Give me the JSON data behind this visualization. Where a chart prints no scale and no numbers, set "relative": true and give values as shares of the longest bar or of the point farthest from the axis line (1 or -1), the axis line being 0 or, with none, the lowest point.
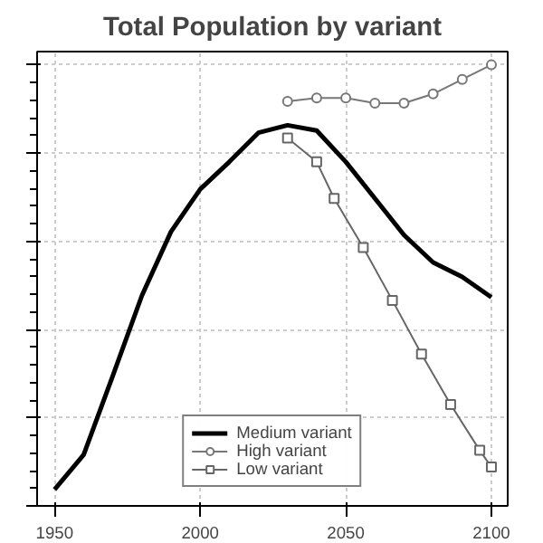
{
  "chart_data": {
    "type": "line",
    "title": "Total Population by variant",
    "relative": true,
    "xlim": [
      1944,
      2105.6
    ],
    "xticks": [
      1950,
      2000,
      2050,
      2100
    ],
    "grid": true,
    "legend": "bottom",
    "series": [
      {
        "name": "Medium variant",
        "color": "#000000",
        "marker": "none",
        "x": [
          1950,
          1960,
          1970,
          1980,
          1990,
          2000,
          2010,
          2020,
          2030,
          2040,
          2050,
          2060,
          2070,
          2080,
          2090,
          2100
        ],
        "values": [
          0.037,
          0.116,
          0.295,
          0.477,
          0.622,
          0.718,
          0.78,
          0.846,
          0.863,
          0.851,
          0.78,
          0.697,
          0.614,
          0.552,
          0.519,
          0.473
        ]
      },
      {
        "name": "High variant",
        "color": "#777777",
        "marker": "circle",
        "x": [
          2030,
          2040,
          2050,
          2060,
          2070,
          2080,
          2090,
          2100
        ],
        "values": [
          0.917,
          0.925,
          0.925,
          0.913,
          0.913,
          0.934,
          0.967,
          1.0
        ]
      },
      {
        "name": "Low variant",
        "color": "#666666",
        "marker": "square",
        "x": [
          2030,
          2040,
          2046,
          2056,
          2066,
          2076,
          2086,
          2096,
          2100
        ],
        "values": [
          0.834,
          0.78,
          0.697,
          0.586,
          0.466,
          0.344,
          0.23,
          0.126,
          0.088
        ]
      }
    ]
  }
}
